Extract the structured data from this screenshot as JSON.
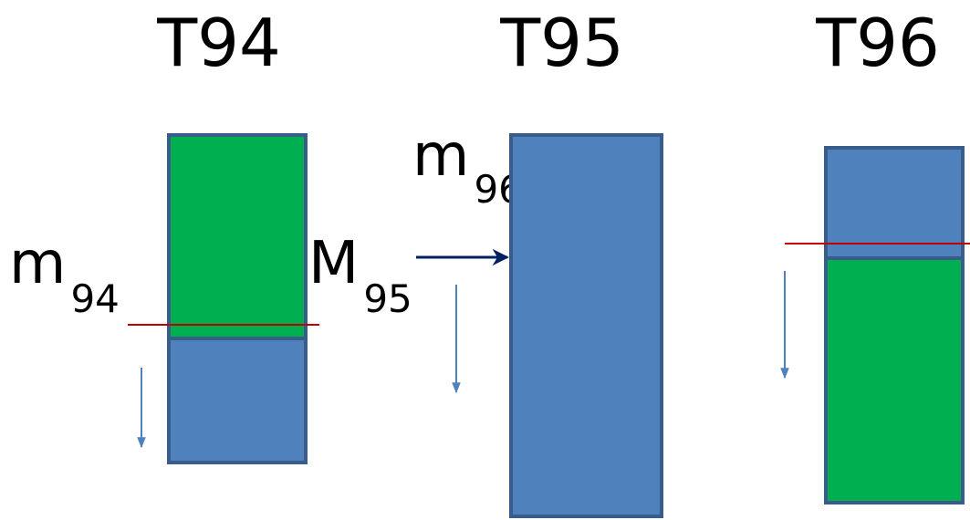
{
  "colors": {
    "green": "#00B050",
    "blue": "#4F81BD",
    "border": "#385D8A",
    "level_line": "#C00000",
    "main_arrow": "#002060",
    "down_arrow": "#4F81BD"
  },
  "columns": [
    {
      "title": "T94",
      "variable": {
        "base": "m",
        "subscript": "94"
      },
      "green_on_top": true,
      "green_fraction": 0.62
    },
    {
      "title": "T95",
      "variable": {
        "base": "M",
        "subscript": "95"
      },
      "green_fraction": 0.0
    },
    {
      "title": "T96",
      "variable": {
        "base": "m",
        "subscript": "96"
      },
      "green_on_top": false,
      "green_fraction": 0.69
    }
  ]
}
